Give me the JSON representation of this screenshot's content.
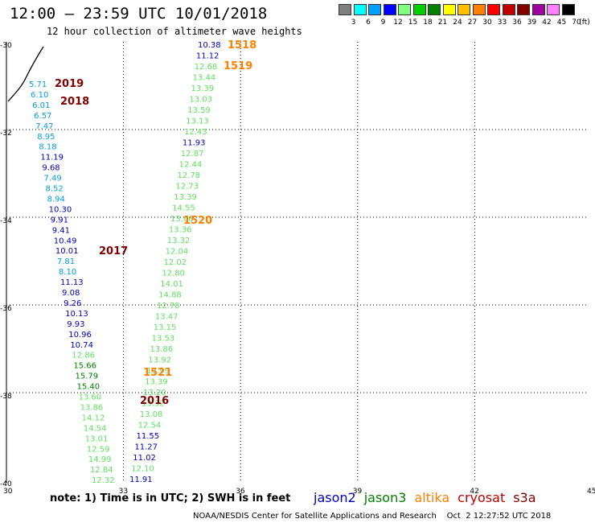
{
  "title": "12:00 – 23:59 UTC 10/01/2018",
  "subtitle": "12 hour collection of altimeter wave heights",
  "scale": {
    "unit": "(ft)",
    "colors": [
      "#808080",
      "#00ffff",
      "#00a0ff",
      "#0000ff",
      "#80ff80",
      "#00d000",
      "#008000",
      "#ffff00",
      "#ffc000",
      "#ff8000",
      "#ff0000",
      "#c00000",
      "#800000",
      "#a000a0",
      "#ff80ff",
      "#000000"
    ],
    "labels": [
      "3",
      "6",
      "9",
      "12",
      "15",
      "18",
      "21",
      "24",
      "27",
      "30",
      "33",
      "36",
      "39",
      "42",
      "45",
      "70"
    ]
  },
  "axes": {
    "lon_labels": [
      "30",
      "33",
      "36",
      "39",
      "42",
      "45"
    ],
    "lat_labels": [
      "-30",
      "-32",
      "-34",
      "-36",
      "-38",
      "-40"
    ]
  },
  "satellite_colors": {
    "jason2": "#0000c0",
    "jason3": "#008000",
    "altika": "#ff8000",
    "cryosat": "#c00000",
    "s3a": "#800000",
    "light_green": "#60e060",
    "cyan": "#00a0e0"
  },
  "track_east": [
    {
      "v": "10.38",
      "c": "#0000c0"
    },
    {
      "v": "11.12",
      "c": "#0000c0"
    },
    {
      "v": "12.68",
      "c": "#60e060"
    },
    {
      "v": "13.44",
      "c": "#60e060"
    },
    {
      "v": "13.39",
      "c": "#60e060"
    },
    {
      "v": "13.03",
      "c": "#60e060"
    },
    {
      "v": "13.59",
      "c": "#60e060"
    },
    {
      "v": "13.13",
      "c": "#60e060"
    },
    {
      "v": "12.43",
      "c": "#60e060"
    },
    {
      "v": "11.93",
      "c": "#0000c0"
    },
    {
      "v": "12.87",
      "c": "#60e060"
    },
    {
      "v": "12.44",
      "c": "#60e060"
    },
    {
      "v": "12.78",
      "c": "#60e060"
    },
    {
      "v": "12.73",
      "c": "#60e060"
    },
    {
      "v": "13.39",
      "c": "#60e060"
    },
    {
      "v": "14.55",
      "c": "#60e060"
    },
    {
      "v": "13.66",
      "c": "#60e060"
    },
    {
      "v": "13.36",
      "c": "#60e060"
    },
    {
      "v": "13.32",
      "c": "#60e060"
    },
    {
      "v": "12.04",
      "c": "#60e060"
    },
    {
      "v": "12.02",
      "c": "#60e060"
    },
    {
      "v": "12.80",
      "c": "#60e060"
    },
    {
      "v": "14.01",
      "c": "#60e060"
    },
    {
      "v": "14.88",
      "c": "#60e060"
    },
    {
      "v": "12.78",
      "c": "#60e060"
    },
    {
      "v": "13.47",
      "c": "#60e060"
    },
    {
      "v": "13.15",
      "c": "#60e060"
    },
    {
      "v": "13.53",
      "c": "#60e060"
    },
    {
      "v": "13.86",
      "c": "#60e060"
    },
    {
      "v": "13.92",
      "c": "#60e060"
    },
    {
      "v": "13.99",
      "c": "#60e060"
    },
    {
      "v": "13.39",
      "c": "#60e060"
    },
    {
      "v": "13.20",
      "c": "#60e060"
    },
    {
      "v": "13.32",
      "c": "#60e060"
    },
    {
      "v": "13.08",
      "c": "#60e060"
    },
    {
      "v": "12.54",
      "c": "#60e060"
    },
    {
      "v": "11.55",
      "c": "#0000c0"
    },
    {
      "v": "11.27",
      "c": "#0000c0"
    },
    {
      "v": "11.02",
      "c": "#0000c0"
    },
    {
      "v": "12.10",
      "c": "#60e060"
    },
    {
      "v": "11.91",
      "c": "#0000c0"
    }
  ],
  "track_west": [
    {
      "v": "5.71",
      "c": "#00a0e0"
    },
    {
      "v": "6.10",
      "c": "#00a0e0"
    },
    {
      "v": "6.01",
      "c": "#00a0e0"
    },
    {
      "v": "6.57",
      "c": "#00a0e0"
    },
    {
      "v": "7.47",
      "c": "#00a0e0"
    },
    {
      "v": "8.95",
      "c": "#00a0e0"
    },
    {
      "v": "8.18",
      "c": "#00a0e0"
    },
    {
      "v": "11.19",
      "c": "#0000c0"
    },
    {
      "v": "9.68",
      "c": "#0000c0"
    },
    {
      "v": "7.49",
      "c": "#00a0e0"
    },
    {
      "v": "8.52",
      "c": "#00a0e0"
    },
    {
      "v": "8.94",
      "c": "#00a0e0"
    },
    {
      "v": "10.30",
      "c": "#0000c0"
    },
    {
      "v": "9.91",
      "c": "#0000c0"
    },
    {
      "v": "9.41",
      "c": "#0000c0"
    },
    {
      "v": "10.49",
      "c": "#0000c0"
    },
    {
      "v": "10.01",
      "c": "#0000c0"
    },
    {
      "v": "7.81",
      "c": "#00a0e0"
    },
    {
      "v": "8.10",
      "c": "#00a0e0"
    },
    {
      "v": "11.13",
      "c": "#0000c0"
    },
    {
      "v": "9.08",
      "c": "#0000c0"
    },
    {
      "v": "9.26",
      "c": "#0000c0"
    },
    {
      "v": "10.13",
      "c": "#0000c0"
    },
    {
      "v": "9.93",
      "c": "#0000c0"
    },
    {
      "v": "10.96",
      "c": "#0000c0"
    },
    {
      "v": "10.74",
      "c": "#0000c0"
    },
    {
      "v": "12.86",
      "c": "#60e060"
    },
    {
      "v": "15.66",
      "c": "#008000"
    },
    {
      "v": "15.79",
      "c": "#008000"
    },
    {
      "v": "15.40",
      "c": "#008000"
    },
    {
      "v": "13.60",
      "c": "#60e060"
    },
    {
      "v": "13.86",
      "c": "#60e060"
    },
    {
      "v": "14.12",
      "c": "#60e060"
    },
    {
      "v": "14.54",
      "c": "#60e060"
    },
    {
      "v": "13.01",
      "c": "#60e060"
    },
    {
      "v": "12.59",
      "c": "#60e060"
    },
    {
      "v": "14.99",
      "c": "#60e060"
    },
    {
      "v": "12.84",
      "c": "#60e060"
    },
    {
      "v": "12.32",
      "c": "#60e060"
    }
  ],
  "time_labels": [
    {
      "t": "1518",
      "c": "#ff8000"
    },
    {
      "t": "1519",
      "c": "#ff8000"
    },
    {
      "t": "1520",
      "c": "#ff8000"
    },
    {
      "t": "1521",
      "c": "#ff8000"
    },
    {
      "t": "2019",
      "c": "#800000"
    },
    {
      "t": "2018",
      "c": "#800000"
    },
    {
      "t": "2017",
      "c": "#800000"
    },
    {
      "t": "2016",
      "c": "#800000"
    }
  ],
  "note": "note:  1) Time is in UTC;  2) SWH is in feet",
  "satellites": [
    {
      "name": "jason2",
      "color": "#0000c0"
    },
    {
      "name": "jason3",
      "color": "#008000"
    },
    {
      "name": "altika",
      "color": "#ff8000"
    },
    {
      "name": "cryosat",
      "color": "#c00000"
    },
    {
      "name": "s3a",
      "color": "#800000"
    }
  ],
  "footer": "NOAA/NESDIS Center for Satellite Applications and Research    Oct  2 12:27:52 UTC 2018"
}
